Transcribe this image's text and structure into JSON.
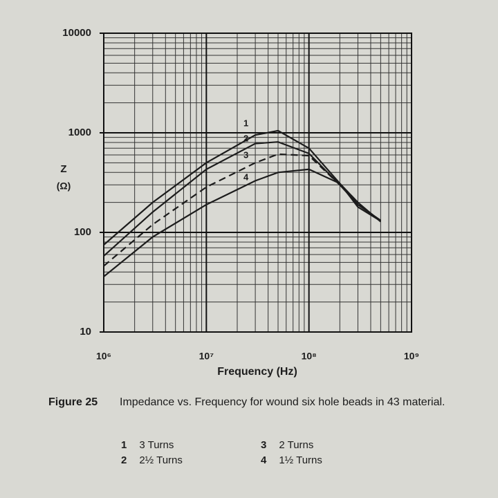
{
  "chart_data": {
    "type": "line",
    "figure": "Figure 25",
    "caption": "Impedance vs. Frequency for wound six hole beads in 43 material.",
    "xlabel": "Frequency (Hz)",
    "ylabel": [
      "Z",
      "(Ω)"
    ],
    "xlog": true,
    "ylog": true,
    "grid": true,
    "xlim": [
      1000000,
      1000000000
    ],
    "ylim": [
      10,
      10000
    ],
    "xticks": [
      {
        "value": 1000000,
        "label": "10⁶"
      },
      {
        "value": 10000000,
        "label": "10⁷"
      },
      {
        "value": 100000000,
        "label": "10⁸"
      },
      {
        "value": 1000000000,
        "label": "10⁹"
      }
    ],
    "yticks": [
      10,
      100,
      1000,
      10000
    ],
    "x": [
      1000000,
      3000000,
      10000000,
      30000000,
      50000000,
      100000000,
      200000000,
      300000000,
      500000000
    ],
    "series": [
      {
        "number": "1",
        "name": "3 Turns",
        "color": "#1c1c1c",
        "dashed": false,
        "values": [
          75,
          200,
          500,
          950,
          1050,
          700,
          310,
          180,
          130
        ]
      },
      {
        "number": "2",
        "name": "2½ Turns",
        "color": "#1c1c1c",
        "dashed": false,
        "values": [
          58,
          160,
          430,
          780,
          810,
          620,
          300,
          190,
          132
        ]
      },
      {
        "number": "3",
        "name": "2 Turns",
        "color": "#1c1c1c",
        "dashed": true,
        "values": [
          46,
          120,
          285,
          500,
          610,
          590,
          300,
          195,
          130
        ]
      },
      {
        "number": "4",
        "name": "1½ Turns",
        "color": "#1c1c1c",
        "dashed": false,
        "values": [
          36,
          90,
          190,
          330,
          400,
          430,
          310,
          200,
          128
        ]
      }
    ]
  }
}
